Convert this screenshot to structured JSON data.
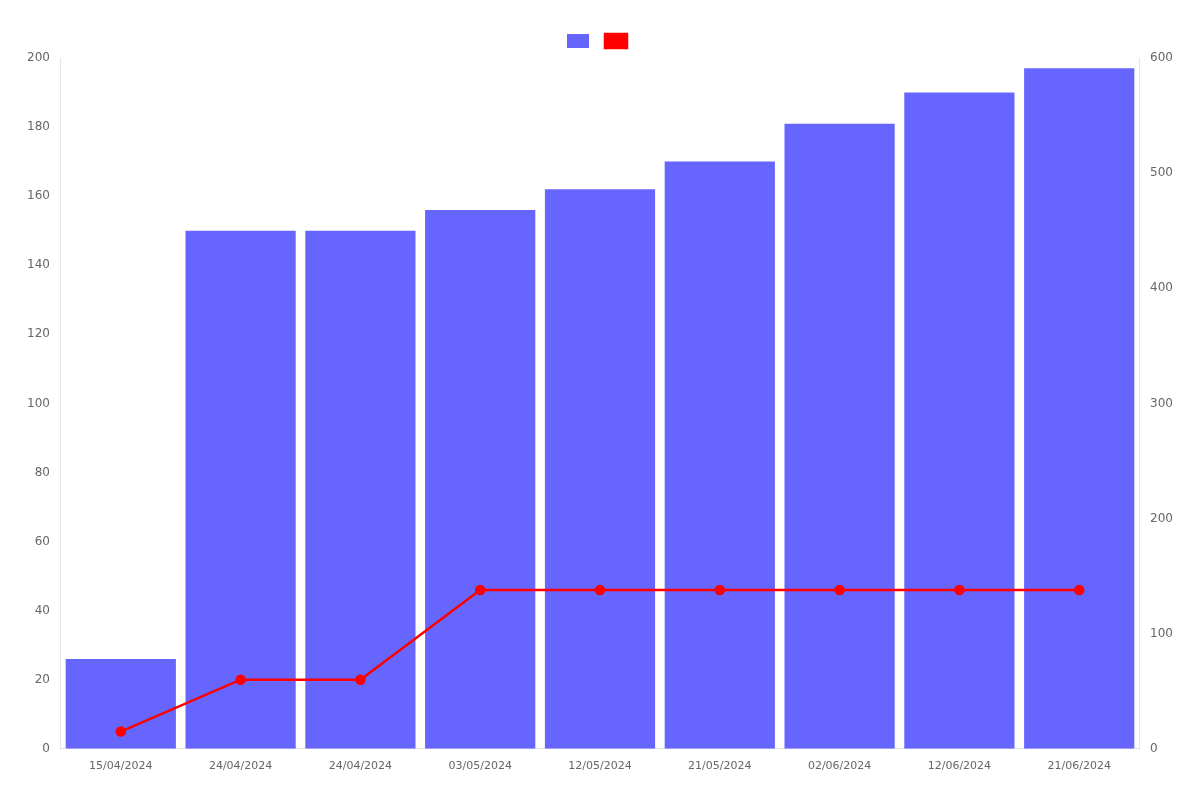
{
  "chart_data": {
    "type": "bar",
    "categories": [
      "15/04/2024",
      "24/04/2024",
      "24/04/2024",
      "03/05/2024",
      "12/05/2024",
      "21/05/2024",
      "02/06/2024",
      "12/06/2024",
      "21/06/2024"
    ],
    "series": [
      {
        "type": "bar",
        "color": "#6666ff",
        "values": [
          26,
          150,
          150,
          156,
          162,
          170,
          181,
          190,
          197
        ]
      },
      {
        "type": "line",
        "color": "#ff0000",
        "marker": "circle",
        "line_style": "solid",
        "values": [
          5,
          20,
          20,
          46,
          46,
          46,
          46,
          46,
          46
        ]
      }
    ],
    "ylim": [
      0,
      200
    ],
    "yticks": [
      0,
      20,
      40,
      60,
      80,
      100,
      120,
      140,
      160,
      180,
      200
    ],
    "y2lim": [
      0,
      600
    ],
    "y2ticks": [
      0,
      100,
      200,
      300,
      400,
      500,
      600
    ],
    "grid": false,
    "legend": "top"
  }
}
